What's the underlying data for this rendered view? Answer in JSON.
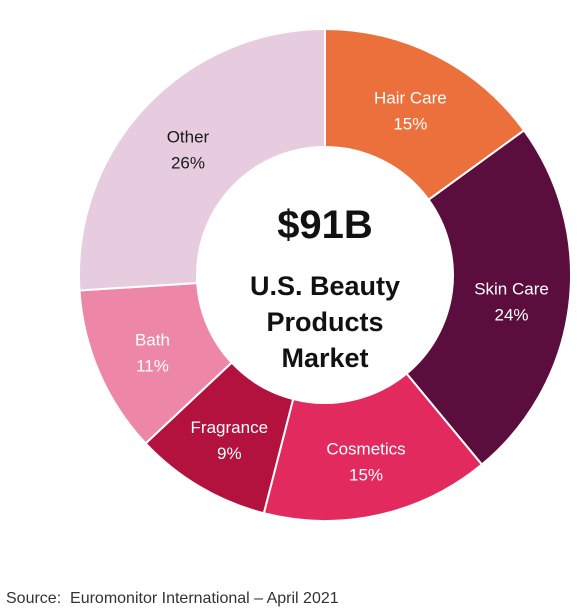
{
  "chart_data": {
    "type": "pie",
    "donut": true,
    "center_value": "$91B",
    "center_label": [
      "U.S. Beauty",
      "Products",
      "Market"
    ],
    "slices": [
      {
        "name": "Hair Care",
        "value": 15,
        "label": "15%",
        "color": "#ec703b",
        "text_color": "#ffffff"
      },
      {
        "name": "Skin Care",
        "value": 24,
        "label": "24%",
        "color": "#5b0d3e",
        "text_color": "#ffffff"
      },
      {
        "name": "Cosmetics",
        "value": 15,
        "label": "15%",
        "color": "#e32a5f",
        "text_color": "#ffffff"
      },
      {
        "name": "Fragrance",
        "value": 9,
        "label": "9%",
        "color": "#b3123f",
        "text_color": "#ffffff"
      },
      {
        "name": "Bath",
        "value": 11,
        "label": "11%",
        "color": "#ee86a8",
        "text_color": "#ffffff"
      },
      {
        "name": "Other",
        "value": 26,
        "label": "26%",
        "color": "#e7cce0",
        "text_color": "#1a1a1a"
      }
    ]
  },
  "source": "Source:  Euromonitor International – April 2021"
}
